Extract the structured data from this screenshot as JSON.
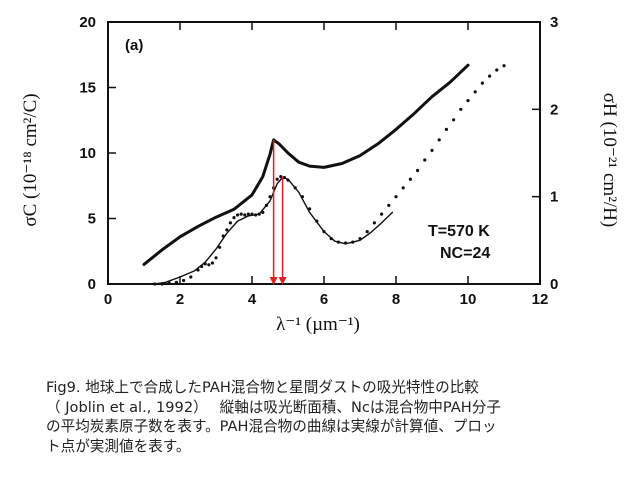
{
  "chart_data": {
    "type": "line",
    "panel_label": "(a)",
    "x_axis": {
      "label": "λ⁻¹ (µm⁻¹)",
      "range": [
        0,
        12
      ],
      "ticks": [
        "0",
        "2",
        "4",
        "6",
        "8",
        "10",
        "12"
      ]
    },
    "y_left": {
      "label": "σC (10⁻¹⁸ cm²/C)",
      "range": [
        0,
        20
      ],
      "ticks": [
        "0",
        "5",
        "10",
        "15",
        "20"
      ]
    },
    "y_right": {
      "label": "σH (10⁻²¹ cm²/H)",
      "range": [
        0,
        3
      ],
      "ticks": [
        "0",
        "1",
        "2",
        "3"
      ]
    },
    "annotations": [
      "T=570 K",
      "NC=24"
    ],
    "series": [
      {
        "style": "solid-left",
        "x": [
          1.0,
          1.5,
          2.0,
          2.5,
          3.0,
          3.5,
          4.0,
          4.3,
          4.5,
          4.6,
          4.75,
          5.0,
          5.3,
          5.6,
          6.0,
          6.5,
          7.0,
          7.5,
          8.0,
          8.5,
          9.0,
          9.5,
          10.0
        ],
        "y": [
          1.5,
          2.6,
          3.6,
          4.4,
          5.1,
          5.7,
          6.8,
          8.2,
          9.9,
          11.0,
          10.7,
          10.0,
          9.3,
          9.0,
          8.9,
          9.2,
          9.8,
          10.7,
          11.8,
          13.0,
          14.3,
          15.4,
          16.7
        ]
      },
      {
        "style": "solid-right",
        "x": [
          1.3,
          1.6,
          2.0,
          2.4,
          2.7,
          3.0,
          3.3,
          3.6,
          3.9,
          4.2,
          4.5,
          4.7,
          4.85,
          5.0,
          5.3,
          5.6,
          6.0,
          6.3,
          6.6,
          7.0,
          7.3,
          7.6,
          7.9
        ],
        "y": [
          0.0,
          0.02,
          0.08,
          0.15,
          0.25,
          0.4,
          0.58,
          0.72,
          0.78,
          0.8,
          0.95,
          1.15,
          1.22,
          1.2,
          1.05,
          0.82,
          0.6,
          0.49,
          0.46,
          0.5,
          0.59,
          0.7,
          0.82
        ]
      },
      {
        "style": "dots-right",
        "x": [
          1.3,
          1.5,
          1.7,
          1.9,
          2.1,
          2.3,
          2.5,
          2.6,
          2.7,
          2.8,
          2.9,
          3.0,
          3.1,
          3.2,
          3.3,
          3.4,
          3.5,
          3.6,
          3.7,
          3.8,
          3.9,
          4.0,
          4.1,
          4.2,
          4.3,
          4.4,
          4.5,
          4.6,
          4.7,
          4.8,
          4.9,
          5.0,
          5.2,
          5.4,
          5.6,
          5.8,
          6.0,
          6.2,
          6.4,
          6.6,
          6.8,
          7.0,
          7.2,
          7.4,
          7.6,
          7.8,
          8.0,
          8.2,
          8.4,
          8.6,
          8.8,
          9.0,
          9.2,
          9.4,
          9.6,
          9.8,
          10.0,
          10.2,
          10.4,
          10.6,
          10.8,
          11.0
        ],
        "y": [
          0.0,
          0.0,
          0.01,
          0.02,
          0.04,
          0.08,
          0.16,
          0.2,
          0.23,
          0.22,
          0.24,
          0.3,
          0.42,
          0.55,
          0.62,
          0.7,
          0.76,
          0.79,
          0.8,
          0.79,
          0.8,
          0.8,
          0.79,
          0.8,
          0.82,
          0.9,
          1.0,
          1.1,
          1.2,
          1.23,
          1.22,
          1.19,
          1.1,
          1.0,
          0.86,
          0.72,
          0.6,
          0.52,
          0.48,
          0.47,
          0.48,
          0.52,
          0.6,
          0.7,
          0.8,
          0.9,
          1.0,
          1.1,
          1.2,
          1.3,
          1.42,
          1.53,
          1.65,
          1.77,
          1.88,
          2.0,
          2.1,
          2.2,
          2.3,
          2.38,
          2.45,
          2.5
        ]
      }
    ],
    "markers": [
      {
        "x": 4.6,
        "color": "#e02020"
      },
      {
        "x": 4.85,
        "color": "#e02020"
      }
    ]
  },
  "caption": {
    "lines": [
      "Fig9. 地球上で合成したPAH混合物と星間ダストの吸光特性の比較",
      "（ Joblin et al., 1992）　 縦軸は吸光断面積、Ncは混合物中PAH分子",
      "の平均炭素原子数を表す。PAH混合物の曲線は実線が計算値、プロッ",
      "ト点が実測値を表す。"
    ]
  }
}
